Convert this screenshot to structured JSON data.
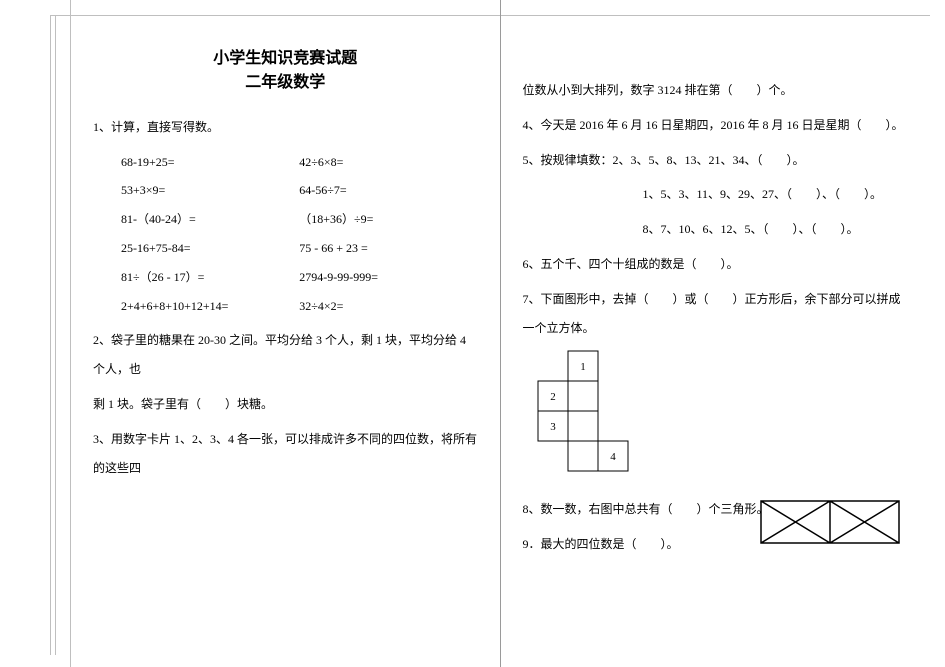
{
  "title": "小学生知识竞赛试题",
  "subtitle": "二年级数学",
  "font_body_pt": 12,
  "font_title_pt": 16,
  "color_text": "#000000",
  "color_rule": "#bfbfbf",
  "color_divider": "#9a9a9a",
  "left": {
    "q1_lead": "1、计算，直接写得数。",
    "calc": [
      [
        "68-19+25=",
        "42÷6×8="
      ],
      [
        "53+3×9=",
        "64-56÷7="
      ],
      [
        "81-（40-24）=",
        "（18+36）÷9="
      ],
      [
        "25-16+75-84=",
        "75 - 66 + 23 ="
      ],
      [
        "81÷（26 - 17）=",
        "2794-9-99-999="
      ],
      [
        "2+4+6+8+10+12+14=",
        "32÷4×2="
      ]
    ],
    "q2a": "2、袋子里的糖果在 20-30 之间。平均分给 3 个人，剩 1 块，平均分给 4 个人，也",
    "q2b": "剩 1 块。袋子里有（　　）块糖。",
    "q3": "3、用数字卡片 1、2、3、4 各一张，可以排成许多不同的四位数，将所有的这些四"
  },
  "right": {
    "q3_cont": "位数从小到大排列，数字 3124 排在第（　　）个。",
    "q4": "4、今天是 2016 年 6 月 16 日星期四，2016 年 8 月 16 日是星期（　　）。",
    "q5_lead": "5、按规律填数：2、3、5、8、13、21、34、（　　）。",
    "q5_b": "1、5、3、11、9、29、27、（　　）、（　　）。",
    "q5_c": "8、7、10、6、12、5、（　　）、（　　）。",
    "q6": "6、五个千、四个十组成的数是（　　）。",
    "q7": "7、下面图形中，去掉（　　）或（　　）正方形后，余下部分可以拼成一个立方体。",
    "q8": "8、数一数，右图中总共有（　　）个三角形。",
    "q9": "9．最大的四位数是（　　）。",
    "net": {
      "cell_size": 30,
      "stroke": "#000000",
      "squares": [
        {
          "col": 1,
          "row": 0,
          "label": "1"
        },
        {
          "col": 0,
          "row": 1,
          "label": "2"
        },
        {
          "col": 1,
          "row": 1,
          "label": ""
        },
        {
          "col": 0,
          "row": 2,
          "label": "3"
        },
        {
          "col": 1,
          "row": 2,
          "label": ""
        },
        {
          "col": 1,
          "row": 3,
          "label": ""
        },
        {
          "col": 2,
          "row": 3,
          "label": "4"
        }
      ]
    },
    "triangles": {
      "w": 140,
      "h": 44,
      "stroke": "#000000"
    }
  }
}
